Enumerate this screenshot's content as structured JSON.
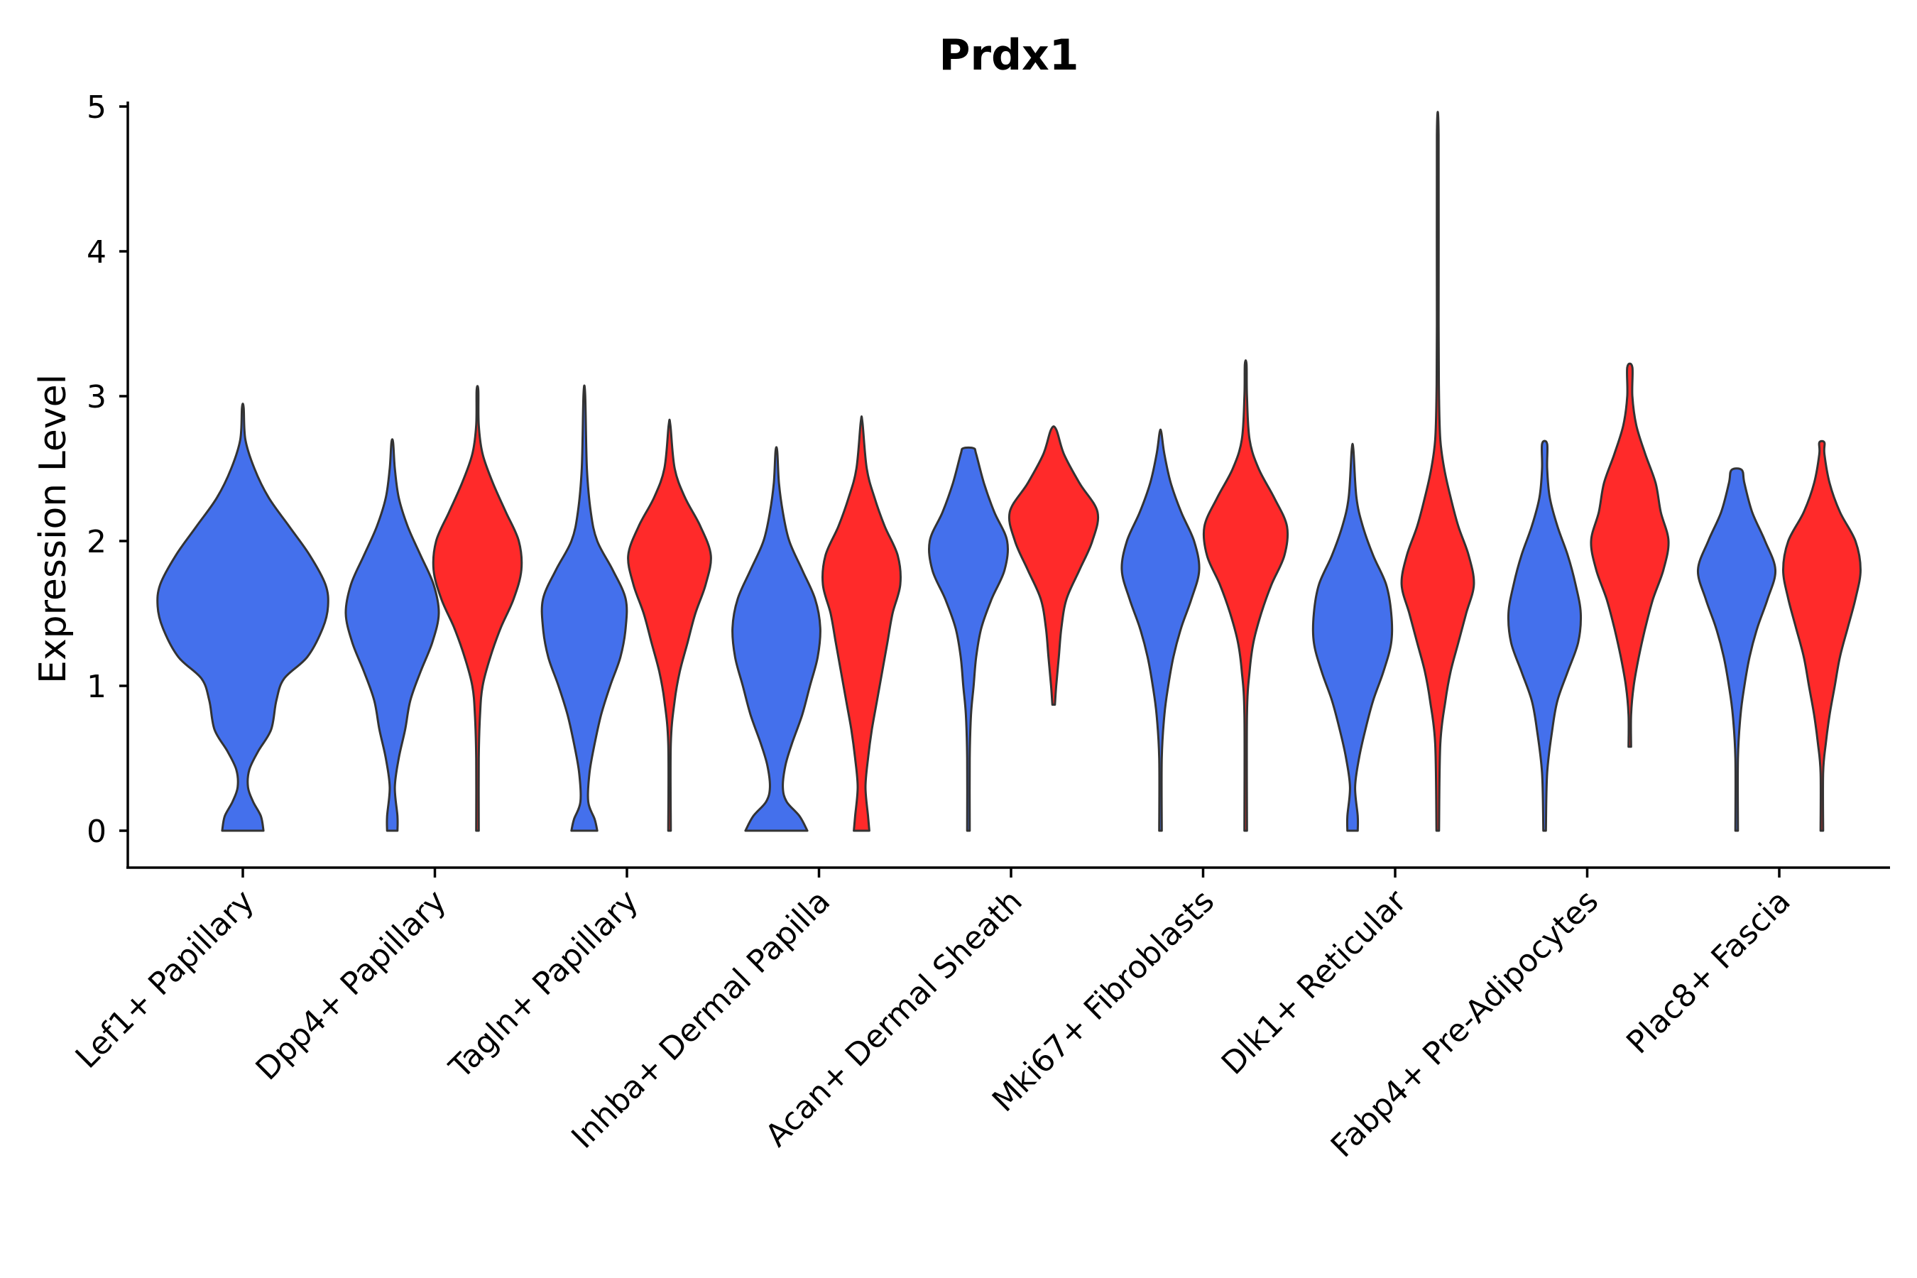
{
  "chart_data": {
    "type": "violin",
    "title": "Prdx1",
    "xlabel": "",
    "ylabel": "Expression Level",
    "ylim": [
      -0.24,
      5.05
    ],
    "yticks": [
      0,
      1,
      2,
      3,
      4,
      5
    ],
    "ytick_labels": [
      "0",
      "1",
      "2",
      "3",
      "4",
      "5"
    ],
    "colors": {
      "group_a": "#4470ec",
      "group_b": "#ff2a2a"
    },
    "categories": [
      "Lef1+ Papillary",
      "Dpp4+ Papillary",
      "Tagln+ Papillary",
      "Inhba+ Dermal Papilla",
      "Acan+ Dermal Sheath",
      "Mki67+ Fibroblasts",
      "Dlk1+ Reticular",
      "Fabp4+ Pre-Adipocytes",
      "Plac8+ Fascia"
    ],
    "violins": [
      {
        "category": "Lef1+ Papillary",
        "group": "a",
        "min": 0,
        "max": 2.92,
        "profile": [
          [
            0,
            0.16
          ],
          [
            0.1,
            0.14
          ],
          [
            0.2,
            0.08
          ],
          [
            0.3,
            0.04
          ],
          [
            0.42,
            0.05
          ],
          [
            0.55,
            0.12
          ],
          [
            0.7,
            0.22
          ],
          [
            0.9,
            0.26
          ],
          [
            1.05,
            0.32
          ],
          [
            1.2,
            0.5
          ],
          [
            1.4,
            0.62
          ],
          [
            1.55,
            0.66
          ],
          [
            1.7,
            0.64
          ],
          [
            1.9,
            0.52
          ],
          [
            2.1,
            0.36
          ],
          [
            2.3,
            0.2
          ],
          [
            2.5,
            0.09
          ],
          [
            2.7,
            0.02
          ],
          [
            2.92,
            0.0
          ]
        ]
      },
      {
        "category": "Dpp4+ Papillary",
        "group": "a",
        "min": 0,
        "max": 2.68,
        "profile": [
          [
            0,
            0.04
          ],
          [
            0.1,
            0.04
          ],
          [
            0.3,
            0.02
          ],
          [
            0.5,
            0.05
          ],
          [
            0.7,
            0.1
          ],
          [
            0.9,
            0.14
          ],
          [
            1.1,
            0.22
          ],
          [
            1.3,
            0.31
          ],
          [
            1.5,
            0.36
          ],
          [
            1.7,
            0.32
          ],
          [
            1.9,
            0.22
          ],
          [
            2.1,
            0.12
          ],
          [
            2.3,
            0.05
          ],
          [
            2.5,
            0.02
          ],
          [
            2.68,
            0.0
          ]
        ]
      },
      {
        "category": "Dpp4+ Papillary",
        "group": "b",
        "min": 0,
        "max": 3.04,
        "profile": [
          [
            0,
            0.01
          ],
          [
            0.5,
            0.01
          ],
          [
            0.8,
            0.02
          ],
          [
            1.0,
            0.04
          ],
          [
            1.2,
            0.1
          ],
          [
            1.4,
            0.18
          ],
          [
            1.6,
            0.28
          ],
          [
            1.8,
            0.34
          ],
          [
            2.0,
            0.32
          ],
          [
            2.2,
            0.22
          ],
          [
            2.4,
            0.12
          ],
          [
            2.6,
            0.04
          ],
          [
            2.8,
            0.01
          ],
          [
            3.04,
            0.0
          ]
        ]
      },
      {
        "category": "Tagln+ Papillary",
        "group": "a",
        "min": 0,
        "max": 3.01,
        "profile": [
          [
            0,
            0.1
          ],
          [
            0.08,
            0.08
          ],
          [
            0.2,
            0.03
          ],
          [
            0.4,
            0.04
          ],
          [
            0.6,
            0.08
          ],
          [
            0.8,
            0.13
          ],
          [
            1.0,
            0.2
          ],
          [
            1.2,
            0.28
          ],
          [
            1.4,
            0.32
          ],
          [
            1.6,
            0.32
          ],
          [
            1.8,
            0.22
          ],
          [
            2.0,
            0.1
          ],
          [
            2.2,
            0.05
          ],
          [
            2.5,
            0.02
          ],
          [
            3.01,
            0.0
          ]
        ]
      },
      {
        "category": "Tagln+ Papillary",
        "group": "b",
        "min": 0,
        "max": 2.8,
        "profile": [
          [
            0,
            0.01
          ],
          [
            0.6,
            0.01
          ],
          [
            0.9,
            0.04
          ],
          [
            1.1,
            0.08
          ],
          [
            1.3,
            0.14
          ],
          [
            1.5,
            0.2
          ],
          [
            1.7,
            0.28
          ],
          [
            1.9,
            0.32
          ],
          [
            2.1,
            0.24
          ],
          [
            2.3,
            0.12
          ],
          [
            2.5,
            0.04
          ],
          [
            2.8,
            0.0
          ]
        ]
      },
      {
        "category": "Inhba+ Dermal Papilla",
        "group": "a",
        "min": 0,
        "max": 2.62,
        "profile": [
          [
            0,
            0.24
          ],
          [
            0.1,
            0.18
          ],
          [
            0.2,
            0.08
          ],
          [
            0.3,
            0.05
          ],
          [
            0.45,
            0.07
          ],
          [
            0.6,
            0.12
          ],
          [
            0.8,
            0.2
          ],
          [
            1.0,
            0.26
          ],
          [
            1.2,
            0.32
          ],
          [
            1.4,
            0.34
          ],
          [
            1.6,
            0.3
          ],
          [
            1.8,
            0.2
          ],
          [
            2.0,
            0.1
          ],
          [
            2.2,
            0.05
          ],
          [
            2.4,
            0.02
          ],
          [
            2.62,
            0.0
          ]
        ]
      },
      {
        "category": "Inhba+ Dermal Papilla",
        "group": "b",
        "min": 0,
        "max": 2.82,
        "profile": [
          [
            0,
            0.06
          ],
          [
            0.1,
            0.05
          ],
          [
            0.3,
            0.03
          ],
          [
            0.5,
            0.05
          ],
          [
            0.7,
            0.08
          ],
          [
            0.9,
            0.12
          ],
          [
            1.1,
            0.16
          ],
          [
            1.3,
            0.2
          ],
          [
            1.5,
            0.24
          ],
          [
            1.7,
            0.3
          ],
          [
            1.9,
            0.28
          ],
          [
            2.1,
            0.18
          ],
          [
            2.3,
            0.1
          ],
          [
            2.5,
            0.04
          ],
          [
            2.82,
            0.0
          ]
        ]
      },
      {
        "category": "Acan+ Dermal Sheath",
        "group": "a",
        "min": 0,
        "max": 2.64,
        "profile": [
          [
            0,
            0.01
          ],
          [
            0.5,
            0.01
          ],
          [
            0.8,
            0.02
          ],
          [
            1.0,
            0.04
          ],
          [
            1.2,
            0.06
          ],
          [
            1.4,
            0.1
          ],
          [
            1.6,
            0.18
          ],
          [
            1.8,
            0.28
          ],
          [
            2.0,
            0.3
          ],
          [
            2.2,
            0.2
          ],
          [
            2.4,
            0.12
          ],
          [
            2.6,
            0.06
          ],
          [
            2.64,
            0.04
          ]
        ]
      },
      {
        "category": "Acan+ Dermal Sheath",
        "group": "b",
        "min": 0.87,
        "max": 2.77,
        "profile": [
          [
            0.87,
            0.01
          ],
          [
            1.0,
            0.02
          ],
          [
            1.2,
            0.04
          ],
          [
            1.4,
            0.06
          ],
          [
            1.6,
            0.1
          ],
          [
            1.8,
            0.2
          ],
          [
            2.0,
            0.3
          ],
          [
            2.2,
            0.34
          ],
          [
            2.4,
            0.2
          ],
          [
            2.6,
            0.08
          ],
          [
            2.77,
            0.02
          ]
        ]
      },
      {
        "category": "Mki67+ Fibroblasts",
        "group": "a",
        "min": 0,
        "max": 2.75,
        "profile": [
          [
            0,
            0.01
          ],
          [
            0.5,
            0.01
          ],
          [
            0.8,
            0.03
          ],
          [
            1.0,
            0.06
          ],
          [
            1.2,
            0.1
          ],
          [
            1.4,
            0.16
          ],
          [
            1.6,
            0.24
          ],
          [
            1.8,
            0.3
          ],
          [
            2.0,
            0.26
          ],
          [
            2.2,
            0.16
          ],
          [
            2.4,
            0.08
          ],
          [
            2.6,
            0.03
          ],
          [
            2.75,
            0.0
          ]
        ]
      },
      {
        "category": "Mki67+ Fibroblasts",
        "group": "b",
        "min": 0,
        "max": 3.22,
        "profile": [
          [
            0,
            0.01
          ],
          [
            0.8,
            0.01
          ],
          [
            1.1,
            0.03
          ],
          [
            1.3,
            0.06
          ],
          [
            1.5,
            0.12
          ],
          [
            1.7,
            0.2
          ],
          [
            1.9,
            0.3
          ],
          [
            2.1,
            0.32
          ],
          [
            2.3,
            0.22
          ],
          [
            2.5,
            0.1
          ],
          [
            2.7,
            0.03
          ],
          [
            3.0,
            0.01
          ],
          [
            3.22,
            0.0
          ]
        ]
      },
      {
        "category": "Dlk1+ Reticular",
        "group": "a",
        "min": 0,
        "max": 2.63,
        "profile": [
          [
            0,
            0.04
          ],
          [
            0.1,
            0.04
          ],
          [
            0.3,
            0.02
          ],
          [
            0.5,
            0.05
          ],
          [
            0.7,
            0.1
          ],
          [
            0.9,
            0.16
          ],
          [
            1.1,
            0.24
          ],
          [
            1.3,
            0.3
          ],
          [
            1.5,
            0.3
          ],
          [
            1.7,
            0.26
          ],
          [
            1.9,
            0.16
          ],
          [
            2.1,
            0.08
          ],
          [
            2.3,
            0.03
          ],
          [
            2.63,
            0.0
          ]
        ]
      },
      {
        "category": "Dlk1+ Reticular",
        "group": "b",
        "min": 0,
        "max": 4.8,
        "profile": [
          [
            0,
            0.01
          ],
          [
            0.6,
            0.02
          ],
          [
            0.9,
            0.06
          ],
          [
            1.1,
            0.1
          ],
          [
            1.3,
            0.16
          ],
          [
            1.5,
            0.22
          ],
          [
            1.7,
            0.28
          ],
          [
            1.9,
            0.24
          ],
          [
            2.1,
            0.16
          ],
          [
            2.3,
            0.1
          ],
          [
            2.5,
            0.05
          ],
          [
            2.7,
            0.02
          ],
          [
            3.0,
            0.01
          ],
          [
            3.5,
            0.005
          ],
          [
            4.8,
            0.0
          ]
        ]
      },
      {
        "category": "Fabp4+ Pre-Adipocytes",
        "group": "a",
        "min": 0,
        "max": 2.67,
        "profile": [
          [
            0,
            0.01
          ],
          [
            0.4,
            0.02
          ],
          [
            0.7,
            0.06
          ],
          [
            0.9,
            0.1
          ],
          [
            1.1,
            0.18
          ],
          [
            1.3,
            0.26
          ],
          [
            1.5,
            0.28
          ],
          [
            1.7,
            0.24
          ],
          [
            1.9,
            0.18
          ],
          [
            2.1,
            0.1
          ],
          [
            2.3,
            0.04
          ],
          [
            2.5,
            0.02
          ],
          [
            2.67,
            0.02
          ]
        ]
      },
      {
        "category": "Fabp4+ Pre-Adipocytes",
        "group": "b",
        "min": 0.58,
        "max": 3.2,
        "profile": [
          [
            0.58,
            0.01
          ],
          [
            0.8,
            0.01
          ],
          [
            1.0,
            0.03
          ],
          [
            1.2,
            0.07
          ],
          [
            1.4,
            0.12
          ],
          [
            1.6,
            0.18
          ],
          [
            1.8,
            0.26
          ],
          [
            2.0,
            0.3
          ],
          [
            2.2,
            0.24
          ],
          [
            2.4,
            0.2
          ],
          [
            2.6,
            0.12
          ],
          [
            2.8,
            0.05
          ],
          [
            3.0,
            0.02
          ],
          [
            3.2,
            0.02
          ]
        ]
      },
      {
        "category": "Plac8+ Fascia",
        "group": "a",
        "min": 0,
        "max": 2.49,
        "profile": [
          [
            0,
            0.01
          ],
          [
            0.5,
            0.01
          ],
          [
            0.8,
            0.03
          ],
          [
            1.0,
            0.06
          ],
          [
            1.2,
            0.1
          ],
          [
            1.4,
            0.16
          ],
          [
            1.6,
            0.24
          ],
          [
            1.8,
            0.3
          ],
          [
            2.0,
            0.22
          ],
          [
            2.2,
            0.12
          ],
          [
            2.4,
            0.06
          ],
          [
            2.49,
            0.04
          ]
        ]
      },
      {
        "category": "Plac8+ Fascia",
        "group": "b",
        "min": 0,
        "max": 2.68,
        "profile": [
          [
            0,
            0.01
          ],
          [
            0.4,
            0.01
          ],
          [
            0.6,
            0.03
          ],
          [
            0.8,
            0.06
          ],
          [
            1.0,
            0.1
          ],
          [
            1.2,
            0.14
          ],
          [
            1.4,
            0.2
          ],
          [
            1.6,
            0.26
          ],
          [
            1.8,
            0.3
          ],
          [
            2.0,
            0.26
          ],
          [
            2.2,
            0.14
          ],
          [
            2.4,
            0.06
          ],
          [
            2.6,
            0.02
          ],
          [
            2.68,
            0.02
          ]
        ]
      }
    ]
  }
}
